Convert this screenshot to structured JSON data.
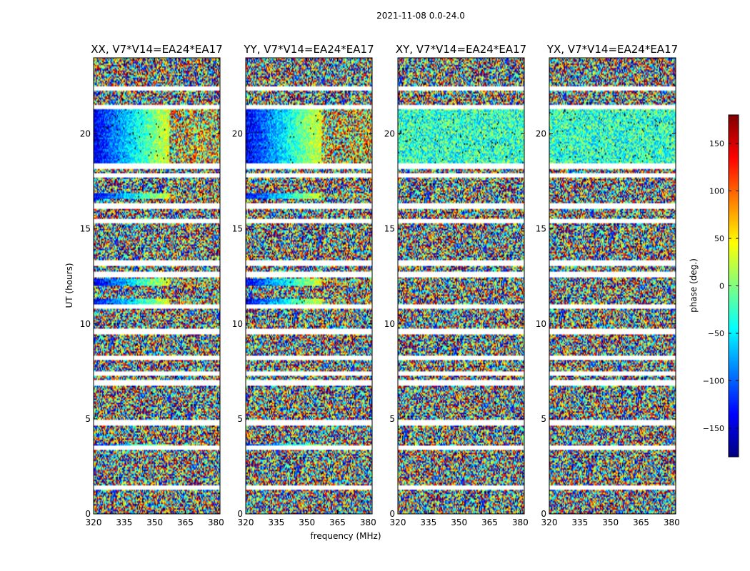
{
  "chart_data": {
    "type": "heatmap",
    "title": "2021-11-08 0.0-24.0",
    "xlabel": "frequency (MHz)",
    "ylabel": "UT (hours)",
    "xlim": [
      320,
      382
    ],
    "ylim": [
      0,
      24
    ],
    "xticks": [
      320,
      335,
      350,
      365,
      380
    ],
    "yticks": [
      0,
      5,
      10,
      15,
      20
    ],
    "colorbar": {
      "label": "phase (deg.)",
      "colormap": "jet",
      "range": [
        -180,
        180
      ],
      "ticks": [
        -150,
        -100,
        -50,
        0,
        50,
        100,
        150
      ],
      "tick_labels": [
        "−150",
        "−100",
        "−50",
        "0",
        "50",
        "100",
        "150"
      ]
    },
    "panels": [
      {
        "title": "XX, V7*V14=EA24*EA17",
        "pol": "XX",
        "coherent": true
      },
      {
        "title": "YY, V7*V14=EA24*EA17",
        "pol": "YY",
        "coherent": true
      },
      {
        "title": "XY, V7*V14=EA24*EA17",
        "pol": "XY",
        "coherent": false
      },
      {
        "title": "YX, V7*V14=EA24*EA17",
        "pol": "YX",
        "coherent": false
      }
    ],
    "coherent_intervals_hours": [
      [
        18.2,
        21.5
      ],
      [
        16.6,
        16.9
      ],
      [
        12.0,
        12.4
      ],
      [
        10.9,
        11.3
      ],
      [
        3.5,
        3.7
      ]
    ],
    "flagged_rows_hours": [
      1.4,
      3.5,
      4.8,
      6.9,
      7.4,
      8.2,
      9.6,
      10.9,
      12.6,
      13.2,
      15.4,
      16.2,
      17.8,
      18.3,
      21.4,
      22.4
    ]
  }
}
